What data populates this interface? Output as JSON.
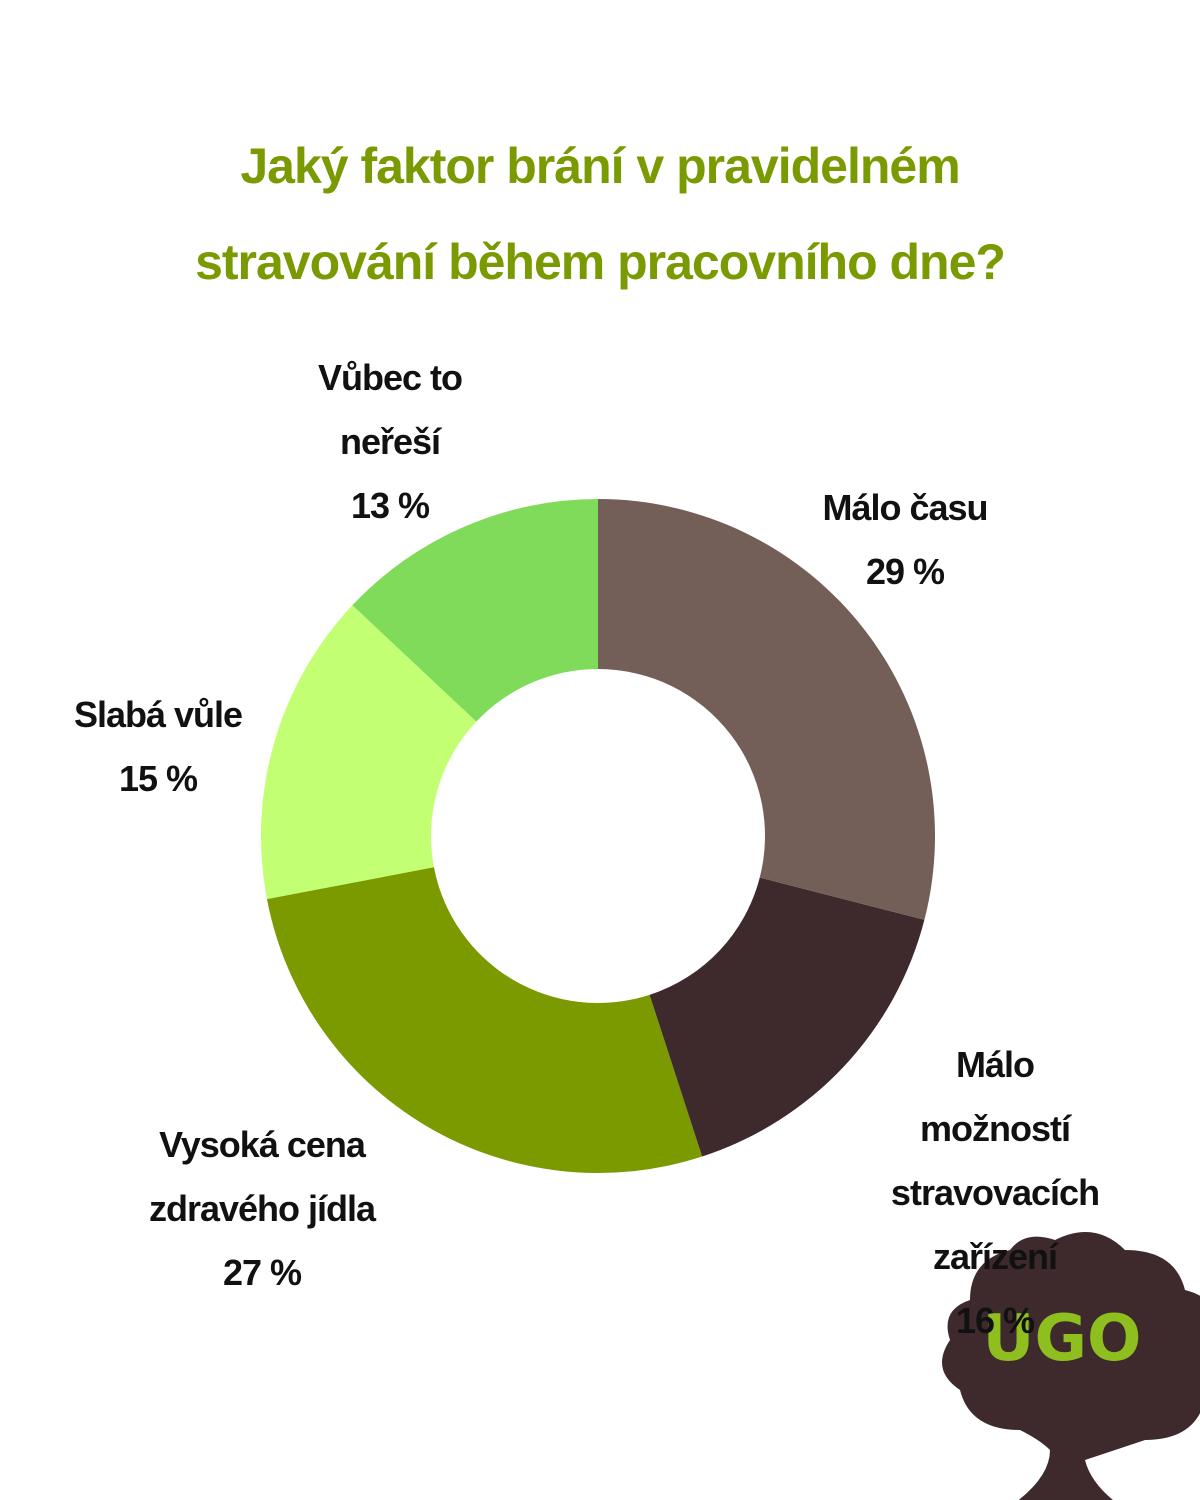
{
  "chart_data": {
    "type": "donut",
    "title": "Jaký faktor brání v pravidelném\nstravování během pracovního dne?",
    "categories": [
      "Málo času",
      "Málo možností\nstravovacích zařízení",
      "Vysoká cena\nzdravého jídla",
      "Slabá vůle",
      "Vůbec to\nneřeší"
    ],
    "values": [
      29,
      16,
      27,
      15,
      13
    ],
    "value_labels": [
      "29 %",
      "16 %",
      "27 %",
      "15 %",
      "13 %"
    ],
    "colors": [
      "#735f58",
      "#3e2a2d",
      "#7a9a00",
      "#c2ff73",
      "#80db5a"
    ]
  },
  "logo": "UGO"
}
